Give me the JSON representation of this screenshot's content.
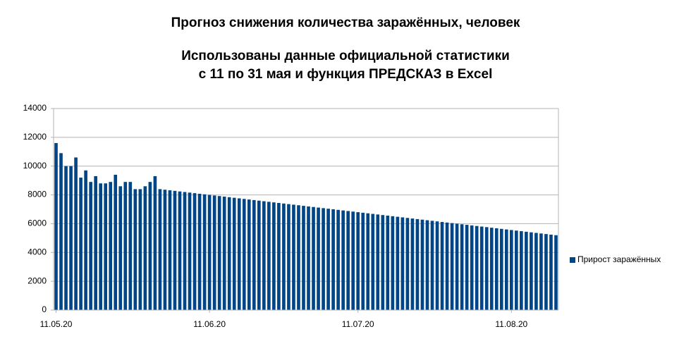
{
  "chart_data": {
    "type": "bar",
    "title": "Прогноз снижения количества заражённых, человек",
    "subtitle_lines": [
      "Использованы данные официальной статистики",
      "с 11 по 31 мая и функция ПРЕДСКАЗ в Excel"
    ],
    "categories": [
      "11.05.20",
      null,
      null,
      null,
      null,
      null,
      null,
      null,
      null,
      null,
      null,
      null,
      null,
      null,
      null,
      null,
      null,
      null,
      null,
      null,
      null,
      null,
      null,
      null,
      null,
      null,
      null,
      null,
      null,
      null,
      null,
      "11.06.20",
      null,
      null,
      null,
      null,
      null,
      null,
      null,
      null,
      null,
      null,
      null,
      null,
      null,
      null,
      null,
      null,
      null,
      null,
      null,
      null,
      null,
      null,
      null,
      null,
      null,
      null,
      null,
      null,
      null,
      "11.07.20",
      null,
      null,
      null,
      null,
      null,
      null,
      null,
      null,
      null,
      null,
      null,
      null,
      null,
      null,
      null,
      null,
      null,
      null,
      null,
      null,
      null,
      null,
      null,
      null,
      null,
      null,
      null,
      null,
      null,
      null,
      "11.08.20",
      null,
      null,
      null,
      null,
      null,
      null,
      null,
      null,
      null
    ],
    "series": [
      {
        "name": "Прирост заражённых",
        "color": "#004586",
        "values": [
          11600,
          10900,
          10000,
          10000,
          10600,
          9200,
          9700,
          8900,
          9300,
          8800,
          8800,
          8900,
          9400,
          8600,
          8900,
          8900,
          8400,
          8400,
          8600,
          8900,
          9300,
          8400,
          8360,
          8320,
          8280,
          8240,
          8200,
          8160,
          8120,
          8080,
          8040,
          8000,
          7960,
          7920,
          7880,
          7840,
          7800,
          7760,
          7720,
          7680,
          7640,
          7600,
          7560,
          7520,
          7480,
          7440,
          7400,
          7360,
          7320,
          7280,
          7240,
          7200,
          7160,
          7120,
          7080,
          7040,
          7000,
          6960,
          6920,
          6880,
          6840,
          6800,
          6760,
          6720,
          6680,
          6640,
          6600,
          6560,
          6520,
          6480,
          6440,
          6400,
          6360,
          6320,
          6280,
          6240,
          6200,
          6160,
          6120,
          6080,
          6040,
          6000,
          5960,
          5920,
          5880,
          5840,
          5800,
          5760,
          5720,
          5680,
          5640,
          5600,
          5560,
          5520,
          5480,
          5440,
          5400,
          5360,
          5320,
          5280,
          5240,
          5200
        ]
      }
    ],
    "ylim": [
      0,
      14000
    ],
    "yticks": [
      0,
      2000,
      4000,
      6000,
      8000,
      10000,
      12000,
      14000
    ],
    "grid": true,
    "legend": "right"
  }
}
